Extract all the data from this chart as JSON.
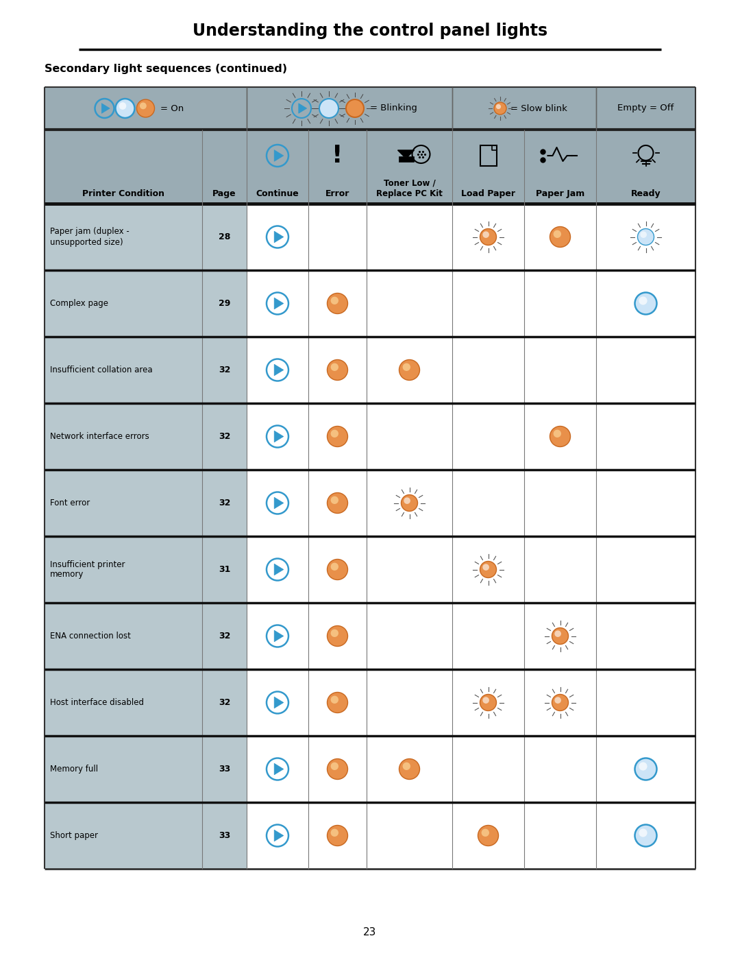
{
  "title": "Understanding the control panel lights",
  "subtitle": "Secondary light sequences (continued)",
  "page_number": "23",
  "bg_color": "#ffffff",
  "header_bg": "#9aacb4",
  "row_bg_gray": "#b8c8ce",
  "row_bg_white": "#ffffff",
  "col_headers": [
    "Printer Condition",
    "Page",
    "Continue",
    "Error",
    "Toner Low /\nReplace PC Kit",
    "Load Paper",
    "Paper Jam",
    "Ready"
  ],
  "rows": [
    {
      "condition": "Paper jam (duplex -\nunsupported size)",
      "page": "28",
      "Continue": "blue_play",
      "Error": "",
      "TonerLow": "",
      "LoadPaper": "orange_slow",
      "PaperJam": "orange_on",
      "Ready": "blue_slow"
    },
    {
      "condition": "Complex page",
      "page": "29",
      "Continue": "blue_play",
      "Error": "orange_on",
      "TonerLow": "",
      "LoadPaper": "",
      "PaperJam": "",
      "Ready": "blue_on"
    },
    {
      "condition": "Insufficient collation area",
      "page": "32",
      "Continue": "blue_play",
      "Error": "orange_on",
      "TonerLow": "orange_on",
      "LoadPaper": "",
      "PaperJam": "",
      "Ready": ""
    },
    {
      "condition": "Network interface errors",
      "page": "32",
      "Continue": "blue_play",
      "Error": "orange_on",
      "TonerLow": "",
      "LoadPaper": "",
      "PaperJam": "orange_on",
      "Ready": ""
    },
    {
      "condition": "Font error",
      "page": "32",
      "Continue": "blue_play",
      "Error": "orange_on",
      "TonerLow": "orange_slow",
      "LoadPaper": "",
      "PaperJam": "",
      "Ready": ""
    },
    {
      "condition": "Insufficient printer\nmemory",
      "page": "31",
      "Continue": "blue_play",
      "Error": "orange_on",
      "TonerLow": "",
      "LoadPaper": "orange_slow",
      "PaperJam": "",
      "Ready": ""
    },
    {
      "condition": "ENA connection lost",
      "page": "32",
      "Continue": "blue_play",
      "Error": "orange_on",
      "TonerLow": "",
      "LoadPaper": "",
      "PaperJam": "orange_slow",
      "Ready": ""
    },
    {
      "condition": "Host interface disabled",
      "page": "32",
      "Continue": "blue_play",
      "Error": "orange_on",
      "TonerLow": "",
      "LoadPaper": "orange_slow",
      "PaperJam": "orange_slow",
      "Ready": ""
    },
    {
      "condition": "Memory full",
      "page": "33",
      "Continue": "blue_play",
      "Error": "orange_on",
      "TonerLow": "orange_on",
      "LoadPaper": "",
      "PaperJam": "",
      "Ready": "blue_on"
    },
    {
      "condition": "Short paper",
      "page": "33",
      "Continue": "blue_play",
      "Error": "orange_on",
      "TonerLow": "",
      "LoadPaper": "orange_on",
      "PaperJam": "",
      "Ready": "blue_on"
    }
  ]
}
